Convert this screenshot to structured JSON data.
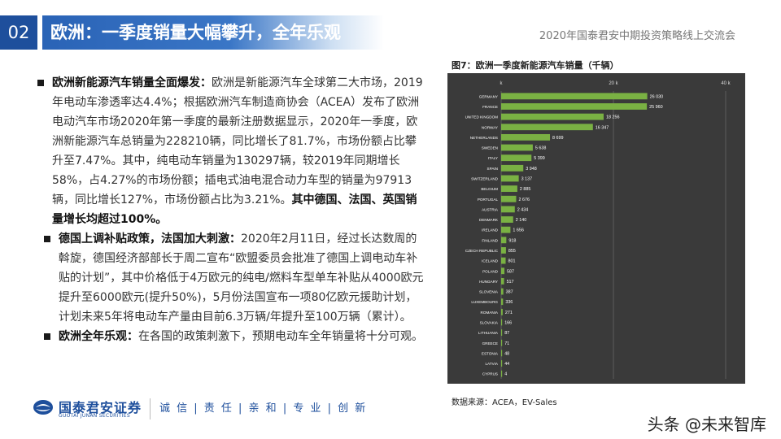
{
  "header": {
    "slide_number": "02",
    "title": "欧洲：一季度销量大幅攀升，全年乐观",
    "event": "2020年国泰君安中期投资策略线上交流会"
  },
  "bullets": [
    {
      "bold": "欧洲新能源汽车销量全面爆发：",
      "text": "欧洲是新能源汽车全球第二大市场，2019年电动车渗透率达4.4%；根据欧洲汽车制造商协会（ACEA）发布了欧洲电动汽车市场2020年第一季度的最新注册数据显示，2020年一季度，欧洲新能源汽车总销量为228210辆，同比增长了81.7%，市场份额占比攀升至7.47%。其中，纯电动车销量为130297辆，较2019年同期增长58%，占4.27%的市场份额；插电式油电混合动力车型的销量为97913辆，同比增长127%，市场份额占比为3.21%。",
      "tail_bold": "其中德国、法国、英国销量增长均超过100%。"
    },
    {
      "bold": "德国上调补贴政策，法国加大刺激：",
      "text": "2020年2月11日，经过长达数周的斡旋，德国经济部部长于周二宣布“欧盟委员会批准了德国上调电动车补贴的计划”，其中价格低于4万欧元的纯电/燃料车型单车补贴从4000欧元提升至6000欧元(提升50%)，5月份法国宣布一项80亿欧元援助计划，计划未来5年将电动车产量由目前6.3万辆/年提升至100万辆（累计）。",
      "tail_bold": ""
    },
    {
      "bold": "欧洲全年乐观：",
      "text": "在各国的政策刺激下，预期电动车全年销量将十分可观。",
      "tail_bold": ""
    }
  ],
  "figure": {
    "caption": "图7：欧洲一季度新能源汽车销量（千辆）",
    "source": "数据来源：ACEA，EV-Sales"
  },
  "chart_data": {
    "type": "bar",
    "orientation": "horizontal",
    "title": "",
    "xlim": [
      0,
      40000
    ],
    "x_ticks": [
      0,
      20000,
      40000
    ],
    "x_tick_labels": [
      "k",
      "20 k",
      "40 k"
    ],
    "grid": true,
    "categories": [
      "GERMANY",
      "FRANCE",
      "UNITED KINGDOM",
      "NORWAY",
      "NETHERLANDS",
      "SWEDEN",
      "ITALY",
      "SPAIN",
      "SWITZERLAND",
      "BELGIUM",
      "PORTUGAL",
      "AUSTRIA",
      "DENMARK",
      "IRELAND",
      "FINLAND",
      "CZECH REPUBLIC",
      "ICELAND",
      "POLAND",
      "HUNGARY",
      "SLOVENIA",
      "LUXEMBOURG",
      "ROMANIA",
      "SLOVAKIA",
      "LITHUANIA",
      "GREECE",
      "ESTONIA",
      "LATVIA",
      "CYPRUS"
    ],
    "values": [
      26030,
      25960,
      18256,
      16347,
      8699,
      5638,
      5399,
      3948,
      3137,
      2885,
      2676,
      2434,
      2140,
      1656,
      918,
      855,
      801,
      587,
      517,
      387,
      336,
      271,
      166,
      87,
      71,
      48,
      44,
      4
    ],
    "value_labels": [
      "26 030",
      "25 960",
      "18 256",
      "16 347",
      "8 699",
      "5 638",
      "5 399",
      "3 948",
      "3 137",
      "2 885",
      "2 676",
      "2 434",
      "2 140",
      "1 656",
      "918",
      "855",
      "801",
      "587",
      "517",
      "387",
      "336",
      "271",
      "166",
      "87",
      "71",
      "48",
      "44",
      "4"
    ],
    "colors": {
      "background": "#3a3a3a",
      "bar": "#7ab143",
      "text": "#ffffff",
      "grid": "#5c5c5c"
    }
  },
  "footer": {
    "company_cn": "国泰君安证券",
    "company_en": "GUOTAI JUNAN SECURITIES",
    "motto": "诚 信 | 责 任 | 亲 和 | 专 业 | 创 新",
    "watermark": "头条 @未来智库"
  }
}
